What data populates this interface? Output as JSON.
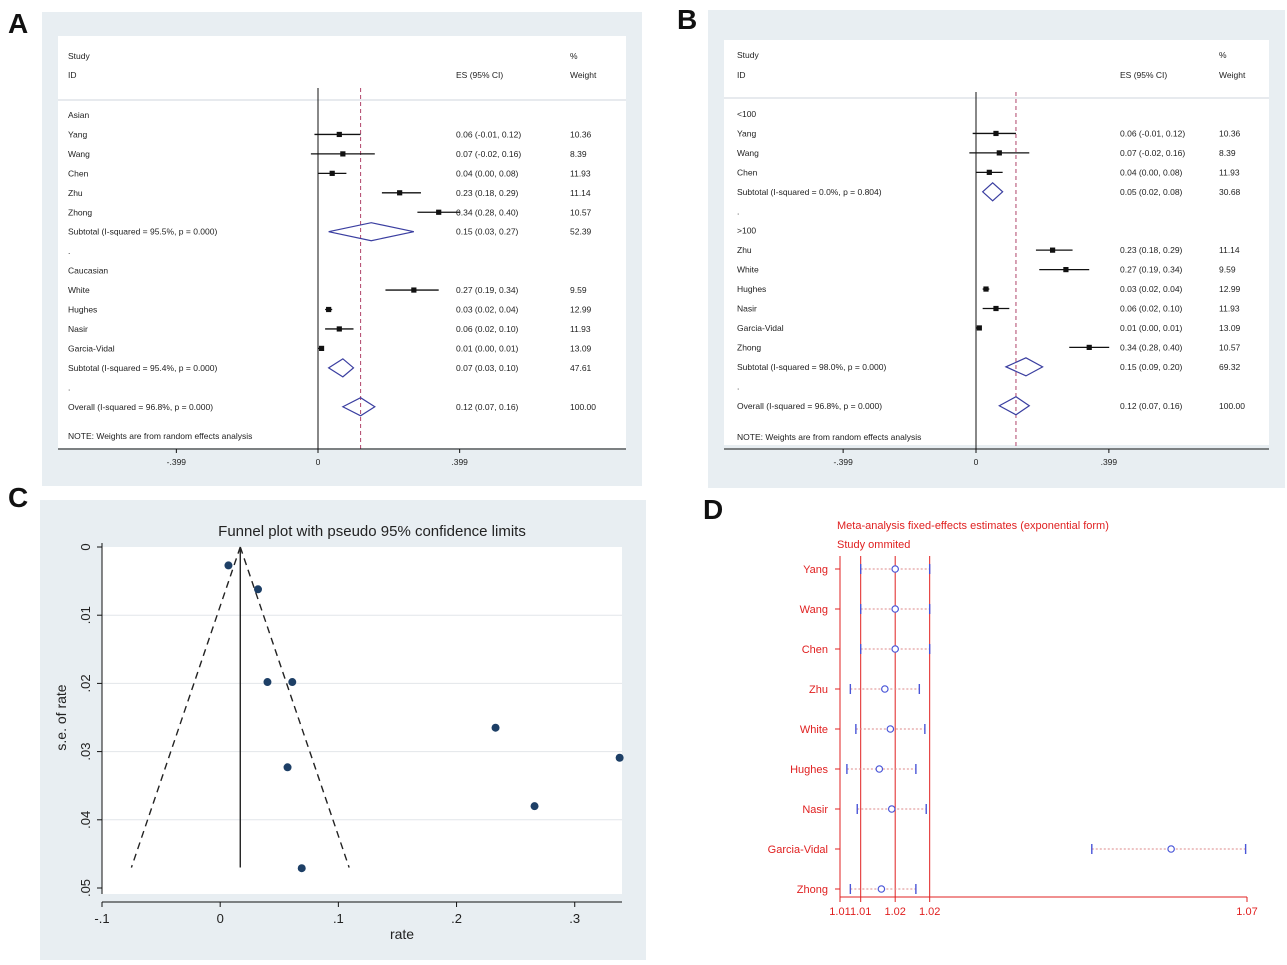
{
  "panel_letters": {
    "a": "A",
    "b": "B",
    "c": "C",
    "d": "D"
  },
  "chart_data": [
    {
      "panel": "A",
      "type": "forest",
      "headers": {
        "study_top": "Study",
        "study": "ID",
        "es": "ES (95% CI)",
        "weight_top": "%",
        "weight": "Weight"
      },
      "xticks": [
        "-.399",
        "0",
        ".399"
      ],
      "overall_line": 0.12,
      "note": "NOTE: Weights are from random effects analysis",
      "rows": [
        {
          "kind": "group",
          "label": "Asian"
        },
        {
          "kind": "study",
          "label": "Yang",
          "es": 0.06,
          "lo": -0.01,
          "hi": 0.12,
          "es_text": "0.06 (-0.01, 0.12)",
          "weight": "10.36"
        },
        {
          "kind": "study",
          "label": "Wang",
          "es": 0.07,
          "lo": -0.02,
          "hi": 0.16,
          "es_text": "0.07 (-0.02, 0.16)",
          "weight": "8.39"
        },
        {
          "kind": "study",
          "label": "Chen",
          "es": 0.04,
          "lo": 0.0,
          "hi": 0.08,
          "es_text": "0.04 (0.00, 0.08)",
          "weight": "11.93"
        },
        {
          "kind": "study",
          "label": "Zhu",
          "es": 0.23,
          "lo": 0.18,
          "hi": 0.29,
          "es_text": "0.23 (0.18, 0.29)",
          "weight": "11.14"
        },
        {
          "kind": "study",
          "label": "Zhong",
          "es": 0.34,
          "lo": 0.28,
          "hi": 0.4,
          "es_text": "0.34 (0.28, 0.40)",
          "weight": "10.57"
        },
        {
          "kind": "subtotal",
          "label": "Subtotal  (I-squared = 95.5%, p = 0.000)",
          "es": 0.15,
          "lo": 0.03,
          "hi": 0.27,
          "es_text": "0.15 (0.03, 0.27)",
          "weight": "52.39"
        },
        {
          "kind": "dot",
          "label": "."
        },
        {
          "kind": "group",
          "label": "Caucasian"
        },
        {
          "kind": "study",
          "label": "White",
          "es": 0.27,
          "lo": 0.19,
          "hi": 0.34,
          "es_text": "0.27 (0.19, 0.34)",
          "weight": "9.59"
        },
        {
          "kind": "study",
          "label": "Hughes",
          "es": 0.03,
          "lo": 0.02,
          "hi": 0.04,
          "es_text": "0.03 (0.02, 0.04)",
          "weight": "12.99"
        },
        {
          "kind": "study",
          "label": "Nasir",
          "es": 0.06,
          "lo": 0.02,
          "hi": 0.1,
          "es_text": "0.06 (0.02, 0.10)",
          "weight": "11.93"
        },
        {
          "kind": "study",
          "label": "Garcia-Vidal",
          "es": 0.01,
          "lo": 0.0,
          "hi": 0.01,
          "es_text": "0.01 (0.00, 0.01)",
          "weight": "13.09"
        },
        {
          "kind": "subtotal",
          "label": "Subtotal  (I-squared = 95.4%, p = 0.000)",
          "es": 0.07,
          "lo": 0.03,
          "hi": 0.1,
          "es_text": "0.07 (0.03, 0.10)",
          "weight": "47.61"
        },
        {
          "kind": "dot",
          "label": "."
        },
        {
          "kind": "subtotal",
          "label": "Overall  (I-squared = 96.8%, p = 0.000)",
          "es": 0.12,
          "lo": 0.07,
          "hi": 0.16,
          "es_text": "0.12 (0.07, 0.16)",
          "weight": "100.00"
        }
      ]
    },
    {
      "panel": "B",
      "type": "forest",
      "headers": {
        "study_top": "Study",
        "study": "ID",
        "es": "ES (95% CI)",
        "weight_top": "%",
        "weight": "Weight"
      },
      "xticks": [
        "-.399",
        "0",
        ".399"
      ],
      "overall_line": 0.12,
      "note": "NOTE: Weights are from random effects analysis",
      "rows": [
        {
          "kind": "group",
          "label": "<100"
        },
        {
          "kind": "study",
          "label": "Yang",
          "es": 0.06,
          "lo": -0.01,
          "hi": 0.12,
          "es_text": "0.06 (-0.01, 0.12)",
          "weight": "10.36"
        },
        {
          "kind": "study",
          "label": "Wang",
          "es": 0.07,
          "lo": -0.02,
          "hi": 0.16,
          "es_text": "0.07 (-0.02, 0.16)",
          "weight": "8.39"
        },
        {
          "kind": "study",
          "label": "Chen",
          "es": 0.04,
          "lo": 0.0,
          "hi": 0.08,
          "es_text": "0.04 (0.00, 0.08)",
          "weight": "11.93"
        },
        {
          "kind": "subtotal",
          "label": "Subtotal  (I-squared = 0.0%, p = 0.804)",
          "es": 0.05,
          "lo": 0.02,
          "hi": 0.08,
          "es_text": "0.05 (0.02, 0.08)",
          "weight": "30.68"
        },
        {
          "kind": "dot",
          "label": "."
        },
        {
          "kind": "group",
          "label": ">100"
        },
        {
          "kind": "study",
          "label": "Zhu",
          "es": 0.23,
          "lo": 0.18,
          "hi": 0.29,
          "es_text": "0.23 (0.18, 0.29)",
          "weight": "11.14"
        },
        {
          "kind": "study",
          "label": "White",
          "es": 0.27,
          "lo": 0.19,
          "hi": 0.34,
          "es_text": "0.27 (0.19, 0.34)",
          "weight": "9.59"
        },
        {
          "kind": "study",
          "label": "Hughes",
          "es": 0.03,
          "lo": 0.02,
          "hi": 0.04,
          "es_text": "0.03 (0.02, 0.04)",
          "weight": "12.99"
        },
        {
          "kind": "study",
          "label": "Nasir",
          "es": 0.06,
          "lo": 0.02,
          "hi": 0.1,
          "es_text": "0.06 (0.02, 0.10)",
          "weight": "11.93"
        },
        {
          "kind": "study",
          "label": "Garcia-Vidal",
          "es": 0.01,
          "lo": 0.0,
          "hi": 0.01,
          "es_text": "0.01 (0.00, 0.01)",
          "weight": "13.09"
        },
        {
          "kind": "study",
          "label": "Zhong",
          "es": 0.34,
          "lo": 0.28,
          "hi": 0.4,
          "es_text": "0.34 (0.28, 0.40)",
          "weight": "10.57"
        },
        {
          "kind": "subtotal",
          "label": "Subtotal  (I-squared = 98.0%, p = 0.000)",
          "es": 0.15,
          "lo": 0.09,
          "hi": 0.2,
          "es_text": "0.15 (0.09, 0.20)",
          "weight": "69.32"
        },
        {
          "kind": "dot",
          "label": "."
        },
        {
          "kind": "subtotal",
          "label": "Overall  (I-squared = 96.8%, p = 0.000)",
          "es": 0.12,
          "lo": 0.07,
          "hi": 0.16,
          "es_text": "0.12 (0.07, 0.16)",
          "weight": "100.00"
        }
      ]
    },
    {
      "panel": "C",
      "type": "scatter",
      "title": "Funnel plot with pseudo 95% confidence limits",
      "xlabel": "rate",
      "ylabel": "s.e. of rate",
      "xlim": [
        -0.1,
        0.34
      ],
      "ylim": [
        0,
        0.05
      ],
      "y_reversed": true,
      "xticks": [
        {
          "v": -0.1,
          "t": "-.1"
        },
        {
          "v": 0,
          "t": "0"
        },
        {
          "v": 0.1,
          "t": ".1"
        },
        {
          "v": 0.2,
          "t": ".2"
        },
        {
          "v": 0.3,
          "t": ".3"
        }
      ],
      "yticks": [
        {
          "v": 0,
          "t": "0"
        },
        {
          "v": 0.01,
          "t": ".01"
        },
        {
          "v": 0.02,
          "t": ".02"
        },
        {
          "v": 0.03,
          "t": ".03"
        },
        {
          "v": 0.04,
          "t": ".04"
        },
        {
          "v": 0.05,
          "t": ".05"
        }
      ],
      "pooled_rate": 0.017,
      "funnel_bottom_se": 0.047,
      "points": [
        {
          "x": 0.007,
          "y": 0.0027
        },
        {
          "x": 0.032,
          "y": 0.0062
        },
        {
          "x": 0.04,
          "y": 0.0198
        },
        {
          "x": 0.061,
          "y": 0.0198
        },
        {
          "x": 0.057,
          "y": 0.0323
        },
        {
          "x": 0.069,
          "y": 0.0471
        },
        {
          "x": 0.233,
          "y": 0.0265
        },
        {
          "x": 0.266,
          "y": 0.038
        },
        {
          "x": 0.338,
          "y": 0.0309
        }
      ]
    },
    {
      "panel": "D",
      "type": "sensitivity",
      "title": "Meta-analysis fixed-effects estimates (exponential form)",
      "subtitle": "Study ommited",
      "xlim": [
        1.011,
        1.07
      ],
      "xticks": [
        {
          "v": 1.011,
          "t": "1.01"
        },
        {
          "v": 1.014,
          "t": "1.01"
        },
        {
          "v": 1.019,
          "t": "1.02"
        },
        {
          "v": 1.024,
          "t": "1.02"
        },
        {
          "v": 1.07,
          "t": "1.07"
        }
      ],
      "ref_lines": [
        1.014,
        1.019,
        1.024
      ],
      "rows": [
        {
          "label": "Yang",
          "est": 1.019,
          "lo": 1.014,
          "hi": 1.024
        },
        {
          "label": "Wang",
          "est": 1.019,
          "lo": 1.014,
          "hi": 1.024
        },
        {
          "label": "Chen",
          "est": 1.019,
          "lo": 1.014,
          "hi": 1.024
        },
        {
          "label": "Zhu",
          "est": 1.0175,
          "lo": 1.0125,
          "hi": 1.0225
        },
        {
          "label": "White",
          "est": 1.0183,
          "lo": 1.0133,
          "hi": 1.0233
        },
        {
          "label": "Hughes",
          "est": 1.0167,
          "lo": 1.012,
          "hi": 1.022
        },
        {
          "label": "Nasir",
          "est": 1.0185,
          "lo": 1.0135,
          "hi": 1.0235
        },
        {
          "label": "Garcia-Vidal",
          "est": 1.059,
          "lo": 1.0475,
          "hi": 1.0698
        },
        {
          "label": "Zhong",
          "est": 1.017,
          "lo": 1.0125,
          "hi": 1.022
        }
      ]
    }
  ]
}
